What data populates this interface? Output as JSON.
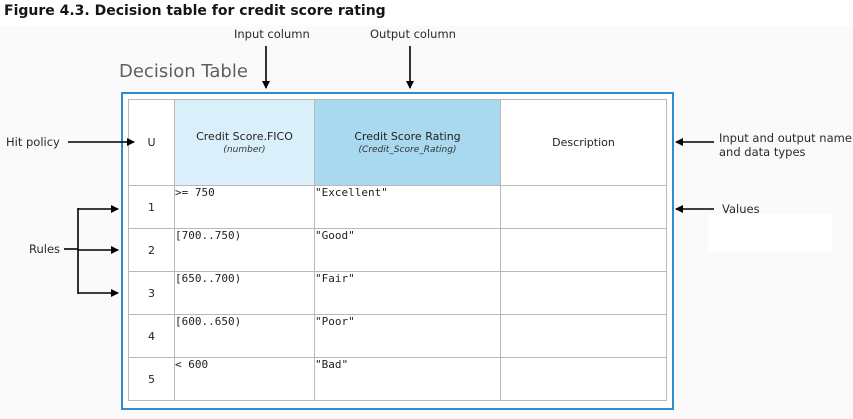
{
  "figure": {
    "caption": "Figure 4.3. Decision table for credit score rating"
  },
  "annotations": {
    "input_column": "Input column",
    "output_column": "Output column",
    "hit_policy": "Hit policy",
    "rules": "Rules",
    "names_types_line1": "Input and output name",
    "names_types_line2": "and data types",
    "values": "Values"
  },
  "decision_table": {
    "title": "Decision Table",
    "hit_policy": "U",
    "columns": [
      {
        "name": "Credit Score.FICO",
        "type": "(number)"
      },
      {
        "name": "Credit Score Rating",
        "type": "(Credit_Score_Rating)"
      },
      {
        "name": "Description",
        "type": ""
      }
    ],
    "rows": [
      {
        "index": "1",
        "input": ">= 750",
        "output": "\"Excellent\"",
        "description": ""
      },
      {
        "index": "2",
        "input": "[700..750)",
        "output": "\"Good\"",
        "description": ""
      },
      {
        "index": "3",
        "input": "[650..700)",
        "output": "\"Fair\"",
        "description": ""
      },
      {
        "index": "4",
        "input": "[600..650)",
        "output": "\"Poor\"",
        "description": ""
      },
      {
        "index": "5",
        "input": "< 600",
        "output": "\"Bad\"",
        "description": ""
      }
    ]
  },
  "colors": {
    "frame": "#2b8fcb",
    "input_header": "#d9f0fb",
    "output_header": "#a9d9ef",
    "grid": "#b9b9b9",
    "arrow": "#000000"
  }
}
